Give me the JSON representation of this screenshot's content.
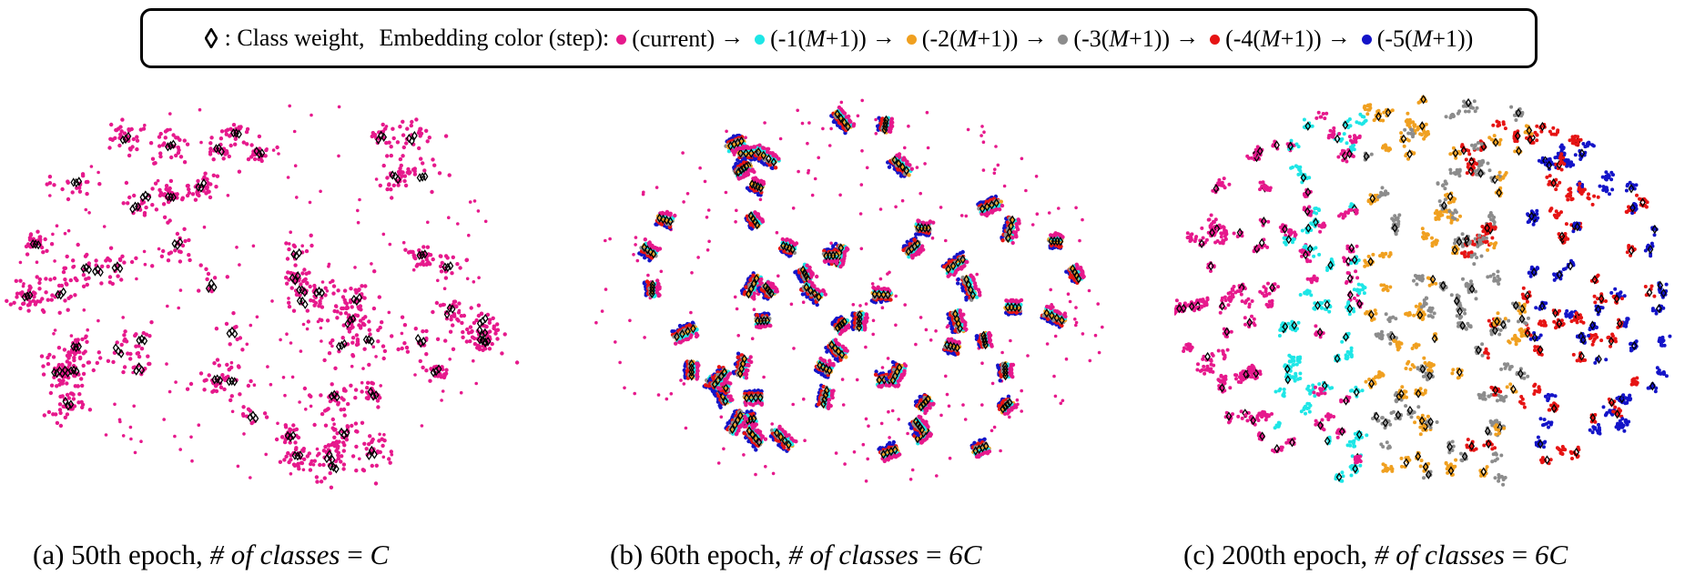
{
  "legend": {
    "diamond_label": ": Class weight,",
    "embedding_label": "Embedding color (step):",
    "items": [
      {
        "label_pre": "(current)",
        "m": "",
        "label_post": "",
        "color": "#e6198c"
      },
      {
        "label_pre": "(-1(",
        "m": "M",
        "label_post": "+1))",
        "color": "#1ee6e6"
      },
      {
        "label_pre": "(-2(",
        "m": "M",
        "label_post": "+1))",
        "color": "#f0a020"
      },
      {
        "label_pre": "(-3(",
        "m": "M",
        "label_post": "+1))",
        "color": "#8c8c8c"
      },
      {
        "label_pre": "(-4(",
        "m": "M",
        "label_post": "+1))",
        "color": "#e61414"
      },
      {
        "label_pre": "(-5(",
        "m": "M",
        "label_post": "+1))",
        "color": "#1414c8"
      }
    ],
    "arrow": "→"
  },
  "chart_data": [
    {
      "type": "scatter",
      "caption": {
        "prefix": "(a) 50th epoch, ",
        "math": "# of classes",
        "eq": " = ",
        "value": "C"
      },
      "series_steps": [
        "current"
      ],
      "num_clusters": 60,
      "class_weight_marker": "diamond"
    },
    {
      "type": "scatter",
      "caption": {
        "prefix": "(b) 60th epoch, ",
        "math": "# of classes",
        "eq": " = ",
        "value": "6C"
      },
      "series_steps": [
        "current",
        "-1(M+1)",
        "-2(M+1)",
        "-3(M+1)",
        "-4(M+1)",
        "-5(M+1)"
      ],
      "num_clusters": 60,
      "class_weight_marker": "diamond"
    },
    {
      "type": "scatter",
      "caption": {
        "prefix": "(c) 200th epoch, ",
        "math": "# of classes",
        "eq": " = ",
        "value": "6C"
      },
      "series_steps": [
        "current",
        "-1(M+1)",
        "-2(M+1)",
        "-3(M+1)",
        "-4(M+1)",
        "-5(M+1)"
      ],
      "num_clusters": 360,
      "class_weight_marker": "diamond"
    }
  ]
}
